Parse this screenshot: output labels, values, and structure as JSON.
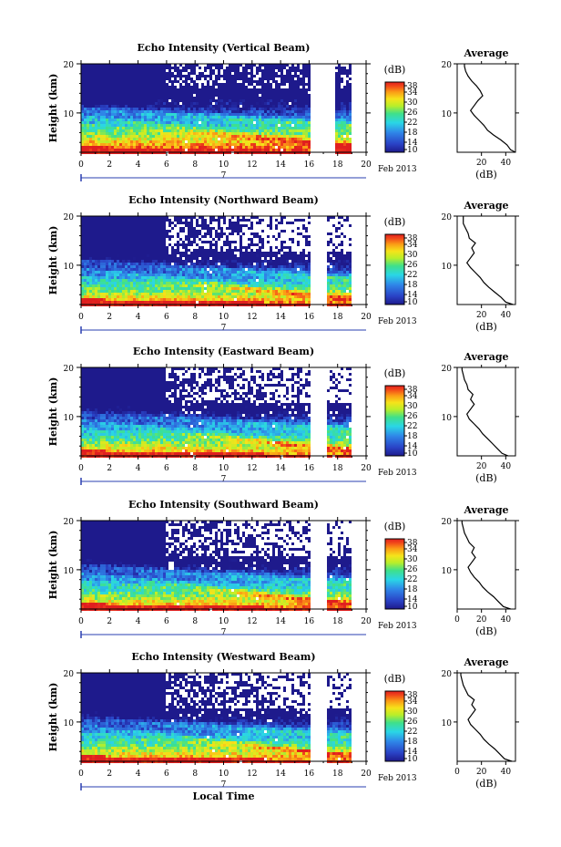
{
  "chart_data": [
    {
      "type": "heatmap",
      "title": "Echo Intensity (Vertical Beam)",
      "ylabel": "Height (km)",
      "xlim": [
        0,
        20
      ],
      "ylim": [
        2,
        20
      ],
      "x_ticks": [
        "0",
        "2",
        "4",
        "6",
        "8",
        "10",
        "12",
        "14",
        "16",
        "18",
        "20"
      ],
      "y_ticks": [
        "20",
        "10"
      ],
      "date_label": "Feb 2013",
      "day_marker": "7",
      "colorbar": {
        "unit": "(dB)",
        "ticks": [
          "38",
          "34",
          "30",
          "26",
          "22",
          "18",
          "14",
          "10"
        ],
        "range": [
          10,
          38
        ]
      },
      "average": {
        "title": "Average",
        "xlabel": "(dB)",
        "x_ticks": [
          "20",
          "40"
        ],
        "y_ticks": [
          "20",
          "10"
        ],
        "xlim": [
          0,
          48
        ],
        "profile": [
          [
            1.5,
            48
          ],
          [
            2.5,
            44
          ],
          [
            3.5,
            41
          ],
          [
            4.5,
            36
          ],
          [
            5.5,
            30
          ],
          [
            6.5,
            25
          ],
          [
            7.5,
            22
          ],
          [
            8.5,
            18
          ],
          [
            9.5,
            14
          ],
          [
            10.5,
            11
          ],
          [
            11.5,
            14
          ],
          [
            12.5,
            17
          ],
          [
            13.5,
            21
          ],
          [
            14.5,
            19
          ],
          [
            15.5,
            16
          ],
          [
            16.5,
            12
          ],
          [
            17.5,
            9
          ],
          [
            18.5,
            7
          ],
          [
            19.5,
            6
          ],
          [
            20,
            6
          ]
        ]
      }
    },
    {
      "type": "heatmap",
      "title": "Echo Intensity (Northward Beam)",
      "ylabel": "Height (km)",
      "xlim": [
        0,
        20
      ],
      "ylim": [
        2,
        20
      ],
      "x_ticks": [
        "0",
        "2",
        "4",
        "6",
        "8",
        "10",
        "12",
        "14",
        "16",
        "18",
        "20"
      ],
      "y_ticks": [
        "20",
        "10"
      ],
      "date_label": "Feb 2013",
      "day_marker": "7",
      "colorbar": {
        "unit": "(dB)",
        "ticks": [
          "38",
          "34",
          "30",
          "26",
          "22",
          "18",
          "14",
          "10"
        ],
        "range": [
          10,
          38
        ]
      },
      "average": {
        "title": "Average",
        "xlabel": "(dB)",
        "x_ticks": [
          "20",
          "40"
        ],
        "y_ticks": [
          "20",
          "10"
        ],
        "xlim": [
          0,
          48
        ],
        "profile": [
          [
            1.5,
            46
          ],
          [
            2.5,
            40
          ],
          [
            3.5,
            36
          ],
          [
            4.5,
            31
          ],
          [
            5.5,
            26
          ],
          [
            6.5,
            22
          ],
          [
            7.5,
            19
          ],
          [
            8.5,
            15
          ],
          [
            9.5,
            11
          ],
          [
            10.5,
            8
          ],
          [
            11.5,
            11
          ],
          [
            12.5,
            14
          ],
          [
            13.5,
            12
          ],
          [
            14.5,
            15
          ],
          [
            15.5,
            10
          ],
          [
            16.5,
            9
          ],
          [
            17.5,
            7
          ],
          [
            18.5,
            5
          ],
          [
            19.5,
            5
          ],
          [
            20,
            5
          ]
        ]
      }
    },
    {
      "type": "heatmap",
      "title": "Echo Intensity (Eastward Beam)",
      "ylabel": "Height (km)",
      "xlim": [
        0,
        20
      ],
      "ylim": [
        2,
        20
      ],
      "x_ticks": [
        "0",
        "2",
        "4",
        "6",
        "8",
        "10",
        "12",
        "14",
        "16",
        "18",
        "20"
      ],
      "y_ticks": [
        "20",
        "10"
      ],
      "date_label": "Feb 2013",
      "day_marker": "7",
      "colorbar": {
        "unit": "(dB)",
        "ticks": [
          "38",
          "34",
          "30",
          "26",
          "22",
          "18",
          "14",
          "10"
        ],
        "range": [
          10,
          38
        ]
      },
      "average": {
        "title": "Average",
        "xlabel": "(dB)",
        "x_ticks": [
          "20",
          "40"
        ],
        "y_ticks": [
          "20",
          "10"
        ],
        "xlim": [
          0,
          48
        ],
        "profile": [
          [
            1.5,
            42
          ],
          [
            2.5,
            37
          ],
          [
            3.5,
            33
          ],
          [
            4.5,
            29
          ],
          [
            5.5,
            25
          ],
          [
            6.5,
            21
          ],
          [
            7.5,
            18
          ],
          [
            8.5,
            14
          ],
          [
            9.5,
            10
          ],
          [
            10.5,
            8
          ],
          [
            11.5,
            11
          ],
          [
            12.5,
            14
          ],
          [
            13.5,
            11
          ],
          [
            14.5,
            13
          ],
          [
            15.5,
            9
          ],
          [
            16.5,
            8
          ],
          [
            17.5,
            6
          ],
          [
            18.5,
            5
          ],
          [
            19.5,
            4
          ],
          [
            20,
            4
          ]
        ]
      }
    },
    {
      "type": "heatmap",
      "title": "Echo Intensity (Southward Beam)",
      "ylabel": "Height (km)",
      "xlim": [
        0,
        20
      ],
      "ylim": [
        2,
        20
      ],
      "x_ticks": [
        "0",
        "2",
        "4",
        "6",
        "8",
        "10",
        "12",
        "14",
        "16",
        "18",
        "20"
      ],
      "y_ticks": [
        "20",
        "10"
      ],
      "date_label": "Feb 2013",
      "day_marker": "7",
      "colorbar": {
        "unit": "(dB)",
        "ticks": [
          "38",
          "34",
          "30",
          "26",
          "22",
          "18",
          "14",
          "10"
        ],
        "range": [
          10,
          38
        ]
      },
      "average": {
        "title": "Average",
        "xlabel": "(dB)",
        "x_ticks": [
          "0",
          "20",
          "40"
        ],
        "y_ticks": [
          "20",
          "10"
        ],
        "xlim": [
          0,
          48
        ],
        "profile": [
          [
            1.5,
            44
          ],
          [
            2.5,
            38
          ],
          [
            3.5,
            34
          ],
          [
            4.5,
            30
          ],
          [
            5.5,
            25
          ],
          [
            6.5,
            21
          ],
          [
            7.5,
            18
          ],
          [
            8.5,
            14
          ],
          [
            9.5,
            11
          ],
          [
            10.5,
            9
          ],
          [
            11.5,
            12
          ],
          [
            12.5,
            15
          ],
          [
            13.5,
            12
          ],
          [
            14.5,
            14
          ],
          [
            15.5,
            10
          ],
          [
            16.5,
            8
          ],
          [
            17.5,
            6
          ],
          [
            18.5,
            5
          ],
          [
            19.5,
            4
          ],
          [
            20,
            4
          ]
        ]
      }
    },
    {
      "type": "heatmap",
      "title": "Echo Intensity (Westward Beam)",
      "ylabel": "Height (km)",
      "xlabel": "Local Time",
      "xlim": [
        0,
        20
      ],
      "ylim": [
        2,
        20
      ],
      "x_ticks": [
        "0",
        "2",
        "4",
        "6",
        "8",
        "10",
        "12",
        "14",
        "16",
        "18",
        "20"
      ],
      "y_ticks": [
        "20",
        "10"
      ],
      "date_label": "Feb 2013",
      "day_marker": "7",
      "colorbar": {
        "unit": "(dB)",
        "ticks": [
          "38",
          "34",
          "30",
          "26",
          "22",
          "18",
          "14",
          "10"
        ],
        "range": [
          10,
          38
        ]
      },
      "average": {
        "title": "Average",
        "xlabel": "(dB)",
        "x_ticks": [
          "0",
          "20",
          "40"
        ],
        "y_ticks": [
          "20",
          "10"
        ],
        "xlim": [
          0,
          48
        ],
        "profile": [
          [
            1.5,
            45
          ],
          [
            2.5,
            39
          ],
          [
            3.5,
            35
          ],
          [
            4.5,
            31
          ],
          [
            5.5,
            26
          ],
          [
            6.5,
            22
          ],
          [
            7.5,
            19
          ],
          [
            8.5,
            15
          ],
          [
            9.5,
            11
          ],
          [
            10.5,
            9
          ],
          [
            11.5,
            12
          ],
          [
            12.5,
            15
          ],
          [
            13.5,
            12
          ],
          [
            14.5,
            14
          ],
          [
            15.5,
            9
          ],
          [
            16.5,
            7
          ],
          [
            17.5,
            5
          ],
          [
            18.5,
            4
          ],
          [
            19.5,
            3
          ],
          [
            20,
            3
          ]
        ]
      }
    }
  ]
}
